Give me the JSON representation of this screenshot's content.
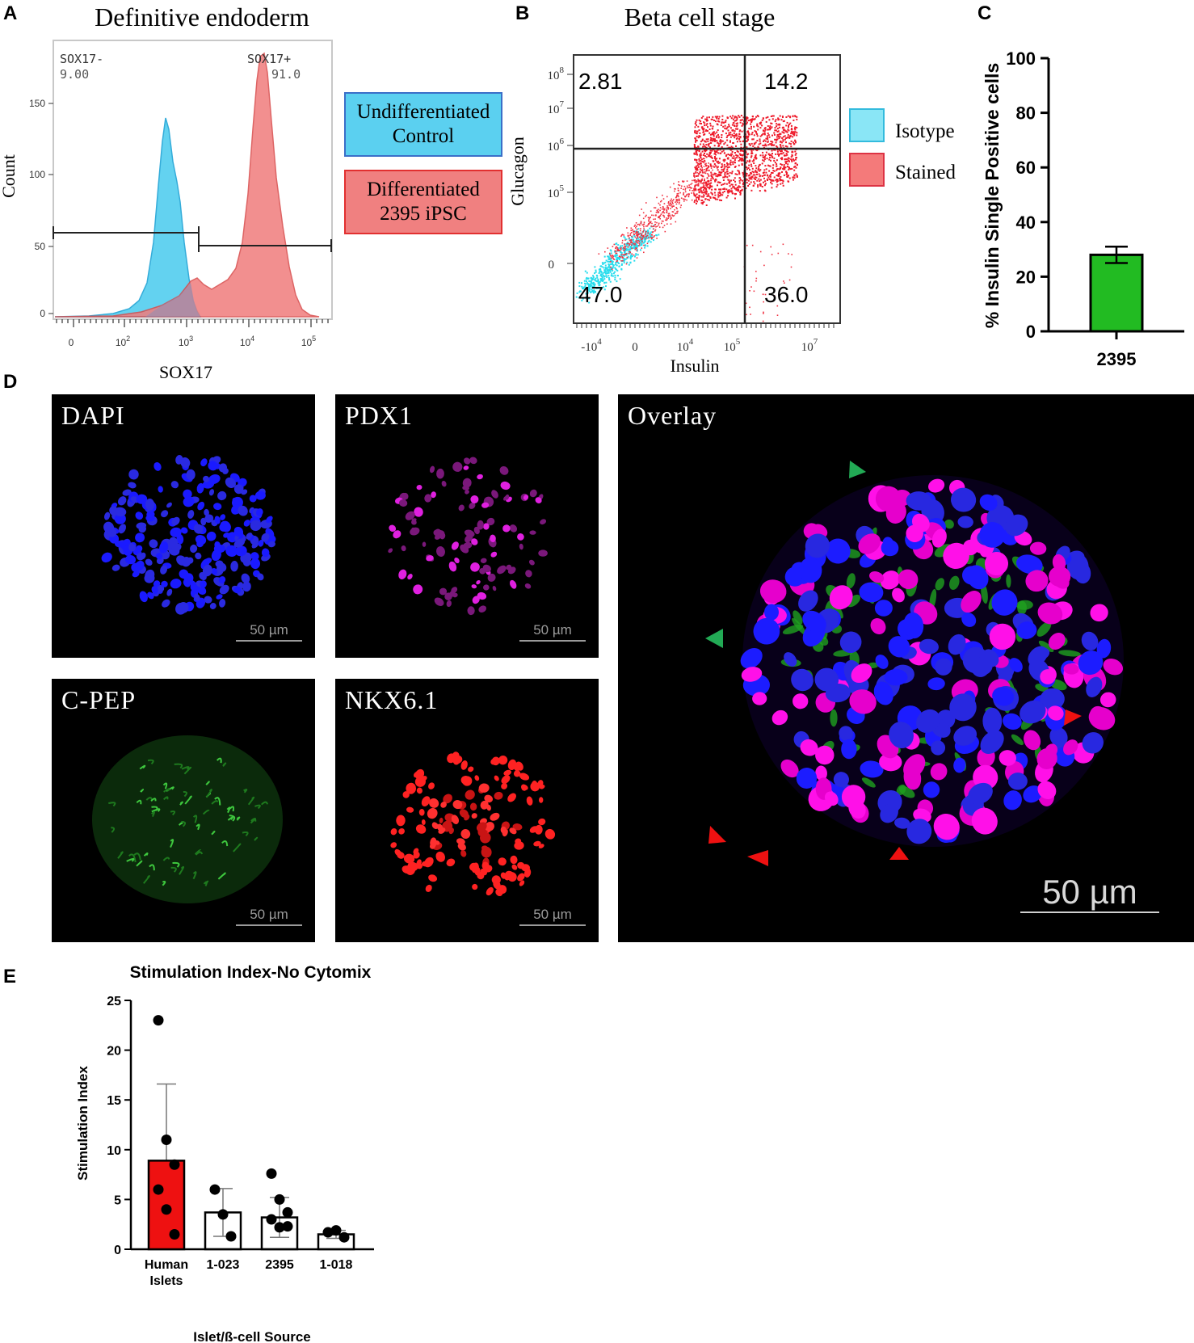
{
  "panel_letters": [
    "A",
    "B",
    "C",
    "D",
    "E"
  ],
  "panelA": {
    "title": "Definitive endoderm",
    "xlabel": "SOX17",
    "ylabel": "Count",
    "yticks": [
      "0",
      "50",
      "100",
      "150"
    ],
    "xticks": [
      "0",
      "10",
      "10",
      "10",
      "10"
    ],
    "xtick_exps": [
      "",
      "2",
      "3",
      "4",
      "5"
    ],
    "gate_neg_name": "SOX17-",
    "gate_neg_value": "9.00",
    "gate_pos_name": "SOX17+",
    "gate_pos_value": "91.0",
    "legend": {
      "undiff_line1": "Undifferentiated",
      "undiff_line2": "Control",
      "diff_line1": "Differentiated",
      "diff_line2": "2395 iPSC"
    },
    "colors": {
      "undiff": "#5bd0f0",
      "diff": "#f07c7c"
    }
  },
  "panelB": {
    "title": "Beta cell stage",
    "xlabel": "Insulin",
    "ylabel": "Glucagon",
    "yticks_base": [
      "10",
      "10",
      "10",
      "10",
      "0"
    ],
    "yticks_exp": [
      "8",
      "7",
      "6",
      "5",
      ""
    ],
    "xticks_base": [
      "-10",
      "0",
      "10",
      "10",
      "10"
    ],
    "xticks_exp": [
      "4",
      "",
      "4",
      "5",
      "7"
    ],
    "quadrants": {
      "upper_left": "2.81",
      "upper_right": "14.2",
      "lower_left": "47.0",
      "lower_right": "36.0"
    },
    "legend": {
      "isotype": "Isotype",
      "stained": "Stained"
    },
    "colors": {
      "isotype": "#33e0ee",
      "stained": "#ee2233"
    }
  },
  "panelC": {
    "chart_data": {
      "type": "bar",
      "categories": [
        "2395"
      ],
      "values": [
        28
      ],
      "error": [
        3
      ],
      "ylabel": "% Insulin Single Positive cells",
      "ylim": [
        0,
        100
      ],
      "yticks": [
        0,
        20,
        40,
        60,
        80,
        100
      ],
      "color": "#22bb22"
    }
  },
  "panelD": {
    "dapi": "DAPI",
    "pdx1": "PDX1",
    "cpep": "C-PEP",
    "nkx": "NKX6.1",
    "overlay": "Overlay",
    "scale": "50 µm"
  },
  "panelE": {
    "chart_data": {
      "type": "bar",
      "title": "Stimulation Index-No Cytomix",
      "xlabel": "Islet/ß-cell Source",
      "ylabel": "Stimulation Index",
      "categories": [
        "Human Islets",
        "1-023",
        "2395",
        "1-018"
      ],
      "category_lines": [
        [
          "Human",
          "Islets"
        ],
        [
          "1-023"
        ],
        [
          "2395"
        ],
        [
          "1-018"
        ]
      ],
      "values": [
        8.9,
        3.7,
        3.2,
        1.5
      ],
      "error": [
        7.7,
        2.4,
        2.0,
        0.4
      ],
      "points": [
        [
          23,
          11,
          8.5,
          6,
          4,
          1.5
        ],
        [
          6,
          3.5,
          1.3
        ],
        [
          7.6,
          5,
          3.7,
          3,
          2.2,
          2.3
        ],
        [
          1.7,
          1.9,
          1.2
        ]
      ],
      "ylim": [
        0,
        25
      ],
      "yticks": [
        0,
        5,
        10,
        15,
        20,
        25
      ],
      "colors": [
        "#ee1111",
        "#ffffff",
        "#ffffff",
        "#ffffff"
      ]
    }
  }
}
